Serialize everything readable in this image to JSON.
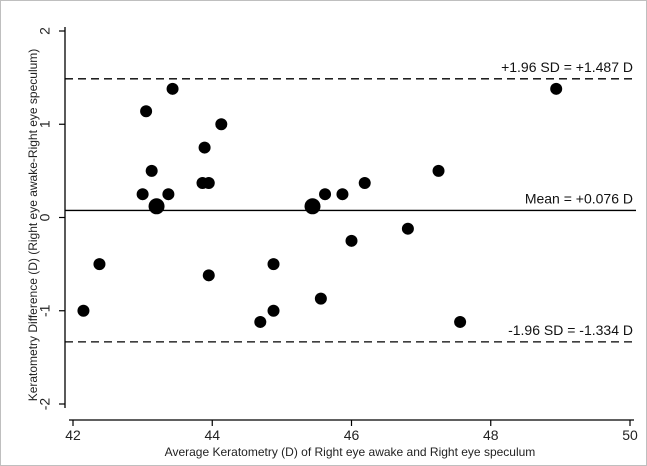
{
  "chart_data": {
    "type": "scatter",
    "title": "",
    "xlabel": "Average Keratometry (D) of Right eye awake and Right eye speculum",
    "ylabel": "Keratometry Difference (D) (Right eye awake-Right eye speculum)",
    "xlim": [
      42,
      50
    ],
    "ylim": [
      -2,
      2
    ],
    "xticks": [
      42,
      44,
      46,
      48,
      50
    ],
    "yticks": [
      -2,
      -1,
      0,
      1,
      2
    ],
    "grid": false,
    "colors": {
      "points": "#000000",
      "axes": "#000000",
      "lines": "#000000"
    },
    "reference_lines": [
      {
        "name": "upper",
        "y": 1.487,
        "style": "dashed",
        "label": "+1.96 SD = +1.487 D"
      },
      {
        "name": "mean",
        "y": 0.076,
        "style": "solid",
        "label": "Mean = +0.076 D"
      },
      {
        "name": "lower",
        "y": -1.334,
        "style": "dashed",
        "label": "-1.96 SD = -1.334 D"
      }
    ],
    "points": [
      {
        "x": 42.15,
        "y": -1.0,
        "size": 1
      },
      {
        "x": 42.38,
        "y": -0.5,
        "size": 1
      },
      {
        "x": 43.05,
        "y": 1.14,
        "size": 1
      },
      {
        "x": 43.13,
        "y": 0.5,
        "size": 1
      },
      {
        "x": 43.0,
        "y": 0.25,
        "size": 1
      },
      {
        "x": 43.2,
        "y": 0.12,
        "size": 2
      },
      {
        "x": 43.37,
        "y": 0.25,
        "size": 1
      },
      {
        "x": 43.43,
        "y": 1.38,
        "size": 1
      },
      {
        "x": 43.86,
        "y": 0.37,
        "size": 1
      },
      {
        "x": 43.89,
        "y": 0.75,
        "size": 1
      },
      {
        "x": 43.95,
        "y": 0.37,
        "size": 1
      },
      {
        "x": 43.95,
        "y": -0.62,
        "size": 1
      },
      {
        "x": 44.13,
        "y": 1.0,
        "size": 1
      },
      {
        "x": 44.69,
        "y": -1.12,
        "size": 1
      },
      {
        "x": 44.88,
        "y": -0.5,
        "size": 1
      },
      {
        "x": 44.88,
        "y": -1.0,
        "size": 1
      },
      {
        "x": 45.44,
        "y": 0.12,
        "size": 2
      },
      {
        "x": 45.56,
        "y": -0.87,
        "size": 1
      },
      {
        "x": 45.62,
        "y": 0.25,
        "size": 1
      },
      {
        "x": 45.87,
        "y": 0.25,
        "size": 1
      },
      {
        "x": 46.0,
        "y": -0.25,
        "size": 1
      },
      {
        "x": 46.19,
        "y": 0.37,
        "size": 1
      },
      {
        "x": 46.81,
        "y": -0.12,
        "size": 1
      },
      {
        "x": 47.25,
        "y": 0.5,
        "size": 1
      },
      {
        "x": 47.56,
        "y": -1.12,
        "size": 1
      },
      {
        "x": 48.94,
        "y": 1.38,
        "size": 1
      }
    ]
  }
}
